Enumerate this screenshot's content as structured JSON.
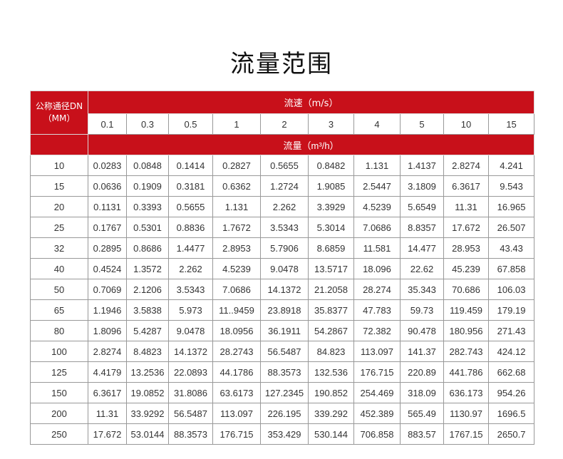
{
  "title": "流量范围",
  "table": {
    "dn_header_line1": "公称通径DN",
    "dn_header_line2": "（MM）",
    "speed_header": "流速（m/s）",
    "flow_header": "流量（m³/h）",
    "speeds": [
      "0.1",
      "0.3",
      "0.5",
      "1",
      "2",
      "3",
      "4",
      "5",
      "10",
      "15"
    ],
    "rows": [
      {
        "dn": "10",
        "values": [
          "0.0283",
          "0.0848",
          "0.1414",
          "0.2827",
          "0.5655",
          "0.8482",
          "1.131",
          "1.4137",
          "2.8274",
          "4.241"
        ]
      },
      {
        "dn": "15",
        "values": [
          "0.0636",
          "0.1909",
          "0.3181",
          "0.6362",
          "1.2724",
          "1.9085",
          "2.5447",
          "3.1809",
          "6.3617",
          "9.543"
        ]
      },
      {
        "dn": "20",
        "values": [
          "0.1131",
          "0.3393",
          "0.5655",
          "1.131",
          "2.262",
          "3.3929",
          "4.5239",
          "5.6549",
          "11.31",
          "16.965"
        ]
      },
      {
        "dn": "25",
        "values": [
          "0.1767",
          "0.5301",
          "0.8836",
          "1.7672",
          "3.5343",
          "5.3014",
          "7.0686",
          "8.8357",
          "17.672",
          "26.507"
        ]
      },
      {
        "dn": "32",
        "values": [
          "0.2895",
          "0.8686",
          "1.4477",
          "2.8953",
          "5.7906",
          "8.6859",
          "11.581",
          "14.477",
          "28.953",
          "43.43"
        ]
      },
      {
        "dn": "40",
        "values": [
          "0.4524",
          "1.3572",
          "2.262",
          "4.5239",
          "9.0478",
          "13.5717",
          "18.096",
          "22.62",
          "45.239",
          "67.858"
        ]
      },
      {
        "dn": "50",
        "values": [
          "0.7069",
          "2.1206",
          "3.5343",
          "7.0686",
          "14.1372",
          "21.2058",
          "28.274",
          "35.343",
          "70.686",
          "106.03"
        ]
      },
      {
        "dn": "65",
        "values": [
          "1.1946",
          "3.5838",
          "5.973",
          "11..9459",
          "23.8918",
          "35.8377",
          "47.783",
          "59.73",
          "119.459",
          "179.19"
        ]
      },
      {
        "dn": "80",
        "values": [
          "1.8096",
          "5.4287",
          "9.0478",
          "18.0956",
          "36.1911",
          "54.2867",
          "72.382",
          "90.478",
          "180.956",
          "271.43"
        ]
      },
      {
        "dn": "100",
        "values": [
          "2.8274",
          "8.4823",
          "14.1372",
          "28.2743",
          "56.5487",
          "84.823",
          "113.097",
          "141.37",
          "282.743",
          "424.12"
        ]
      },
      {
        "dn": "125",
        "values": [
          "4.4179",
          "13.2536",
          "22.0893",
          "44.1786",
          "88.3573",
          "132.536",
          "176.715",
          "220.89",
          "441.786",
          "662.68"
        ]
      },
      {
        "dn": "150",
        "values": [
          "6.3617",
          "19.0852",
          "31.8086",
          "63.6173",
          "127.2345",
          "190.852",
          "254.469",
          "318.09",
          "636.173",
          "954.26"
        ]
      },
      {
        "dn": "200",
        "values": [
          "11.31",
          "33.9292",
          "56.5487",
          "113.097",
          "226.195",
          "339.292",
          "452.389",
          "565.49",
          "1130.97",
          "1696.5"
        ]
      },
      {
        "dn": "250",
        "values": [
          "17.672",
          "53.0144",
          "88.3573",
          "176.715",
          "353.429",
          "530.144",
          "706.858",
          "883.57",
          "1767.15",
          "2650.7"
        ]
      }
    ]
  }
}
